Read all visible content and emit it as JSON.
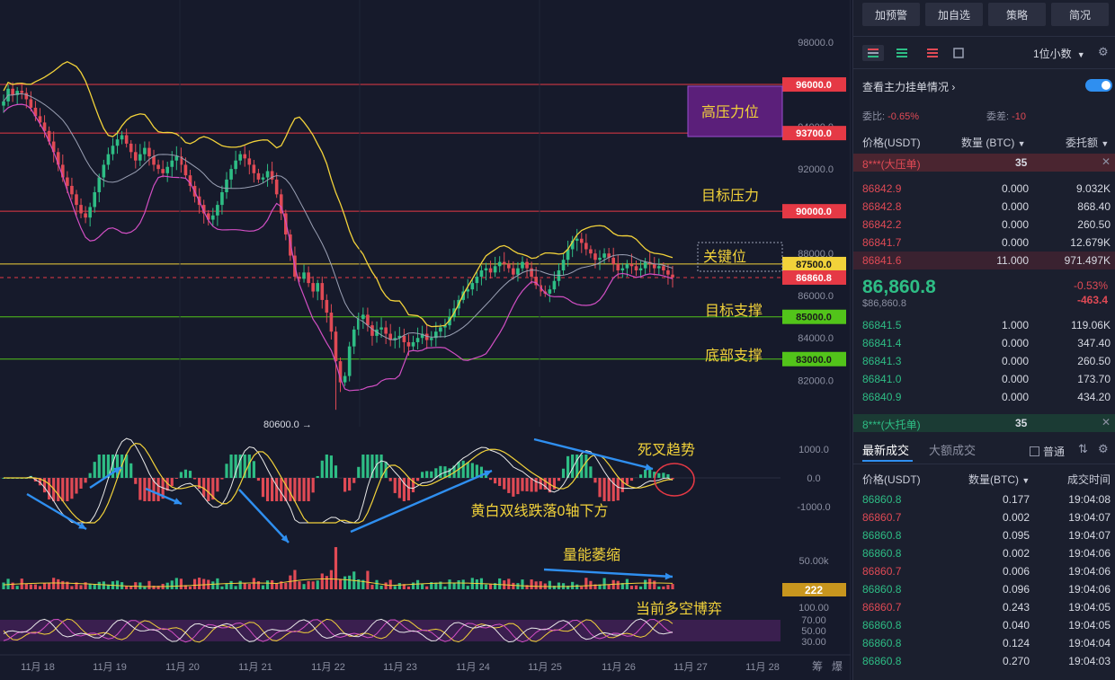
{
  "toolbar": {
    "alert_label": "加预警",
    "watch_label": "加自选",
    "strategy_label": "策略",
    "simple_label": "简况",
    "decimals_label": "1位小数"
  },
  "orderbook": {
    "main_orders_label": "查看主力挂单情况",
    "ratio_label": "委比:",
    "ratio_value": "-0.65%",
    "diff_label": "委差:",
    "diff_value": "-10",
    "col_price": "价格(USDT)",
    "col_qty": "数量 (BTC)",
    "col_total": "委托额",
    "big_sell_label": "8***(大压单)",
    "big_sell_count": "35",
    "big_buy_label": "8***(大托单)",
    "big_buy_count": "35",
    "asks": [
      {
        "price": "86842.9",
        "qty": "0.000",
        "total": "9.032K"
      },
      {
        "price": "86842.8",
        "qty": "0.000",
        "total": "868.40"
      },
      {
        "price": "86842.2",
        "qty": "0.000",
        "total": "260.50"
      },
      {
        "price": "86841.7",
        "qty": "0.000",
        "total": "12.679K"
      },
      {
        "price": "86841.6",
        "qty": "11.000",
        "total": "971.497K"
      }
    ],
    "last_price": "86,860.8",
    "last_price_sub": "$86,860.8",
    "change_pct": "-0.53%",
    "change_abs": "-463.4",
    "bids": [
      {
        "price": "86841.5",
        "qty": "1.000",
        "total": "119.06K"
      },
      {
        "price": "86841.4",
        "qty": "0.000",
        "total": "347.40"
      },
      {
        "price": "86841.3",
        "qty": "0.000",
        "total": "260.50"
      },
      {
        "price": "86841.0",
        "qty": "0.000",
        "total": "173.70"
      },
      {
        "price": "86840.9",
        "qty": "0.000",
        "total": "434.20"
      }
    ]
  },
  "trades": {
    "tab_latest": "最新成交",
    "tab_large": "大额成交",
    "filter_label": "普通",
    "col_price": "价格(USDT)",
    "col_qty": "数量(BTC)",
    "col_time": "成交时间",
    "rows": [
      {
        "price": "86860.8",
        "qty": "0.177",
        "time": "19:04:08",
        "side": "buy"
      },
      {
        "price": "86860.7",
        "qty": "0.002",
        "time": "19:04:07",
        "side": "sell"
      },
      {
        "price": "86860.8",
        "qty": "0.095",
        "time": "19:04:07",
        "side": "buy"
      },
      {
        "price": "86860.8",
        "qty": "0.002",
        "time": "19:04:06",
        "side": "buy"
      },
      {
        "price": "86860.7",
        "qty": "0.006",
        "time": "19:04:06",
        "side": "sell"
      },
      {
        "price": "86860.8",
        "qty": "0.096",
        "time": "19:04:06",
        "side": "buy"
      },
      {
        "price": "86860.7",
        "qty": "0.243",
        "time": "19:04:05",
        "side": "sell"
      },
      {
        "price": "86860.8",
        "qty": "0.040",
        "time": "19:04:05",
        "side": "buy"
      },
      {
        "price": "86860.8",
        "qty": "0.124",
        "time": "19:04:04",
        "side": "buy"
      },
      {
        "price": "86860.8",
        "qty": "0.270",
        "time": "19:04:03",
        "side": "buy"
      }
    ]
  },
  "chart_data": {
    "type": "candlestick",
    "x_labels": [
      "11月 18",
      "11月 19",
      "11月 20",
      "11月 21",
      "11月 22",
      "11月 23",
      "11月 24",
      "11月 25",
      "11月 26",
      "11月 27",
      "11月 28"
    ],
    "y_ticks": [
      "98000.0",
      "94000.0",
      "92000.0",
      "88000.0",
      "86000.0",
      "84000.0",
      "82000.0"
    ],
    "y_ticks_values": [
      98000,
      94000,
      92000,
      88000,
      86000,
      84000,
      82000
    ],
    "y_range": [
      79800,
      100000
    ],
    "levels": [
      {
        "label": "96000.0",
        "value": 96000,
        "color": "#e53945"
      },
      {
        "label": "93700.0",
        "value": 93700,
        "color": "#e53945"
      },
      {
        "label": "90000.0",
        "value": 90000,
        "color": "#e53945"
      },
      {
        "label": "87500.0",
        "value": 87500,
        "color": "#f2d23a"
      },
      {
        "label": "86860.8",
        "value": 86860.8,
        "color": "#e53945"
      },
      {
        "label": "85000.0",
        "value": 85000,
        "color": "#52c41a"
      },
      {
        "label": "83000.0",
        "value": 83000,
        "color": "#52c41a"
      }
    ],
    "annotations": {
      "high_pressure": "高压力位",
      "target_pressure": "目标压力",
      "key_level": "关键位",
      "target_support": "目标支撑",
      "bottom_support": "底部支撑",
      "low_marker": "80600.0 →",
      "death_cross": "死叉趋势",
      "below_zero": "黄白双线跌落0轴下方",
      "volume_shrink": "量能萎缩",
      "bull_bear": "当前多空博弈"
    },
    "series_close": [
      95200,
      95800,
      95500,
      95700,
      95600,
      95300,
      94900,
      94500,
      94200,
      93800,
      93300,
      92800,
      92200,
      91600,
      91200,
      90800,
      90300,
      89900,
      89700,
      90200,
      90900,
      91600,
      92200,
      92700,
      93100,
      93400,
      93600,
      93200,
      92800,
      92400,
      92700,
      93000,
      92600,
      92200,
      92000,
      91800,
      92100,
      92400,
      92600,
      92200,
      91700,
      91200,
      90700,
      90300,
      89900,
      89600,
      89800,
      90300,
      90900,
      91500,
      92000,
      92400,
      92700,
      92500,
      92200,
      91800,
      91500,
      91600,
      91900,
      91500,
      90800,
      89900,
      88900,
      87900,
      86900,
      86800,
      87100,
      86600,
      86200,
      86600,
      85800,
      85200,
      84300,
      82900,
      81900,
      82200,
      83600,
      84400,
      84900,
      85100,
      84600,
      84100,
      84400,
      84500,
      84200,
      83900,
      84000,
      84100,
      83800,
      83600,
      83800,
      84000,
      84200,
      83900,
      84000,
      84300,
      84500,
      84600,
      85000,
      85400,
      85800,
      86200,
      86300,
      86600,
      86900,
      87200,
      87300,
      87100,
      87400,
      87600,
      87500,
      87300,
      87000,
      87300,
      87600,
      87300,
      86900,
      86500,
      86200,
      86100,
      86300,
      86700,
      87200,
      87700,
      88200,
      88600,
      88700,
      88500,
      88200,
      88000,
      87700,
      87800,
      88000,
      87800,
      87500,
      87200,
      87300,
      87500,
      87400,
      87200,
      87300,
      87600,
      87500,
      87300,
      87400,
      87200,
      87000,
      86861
    ],
    "macd": {
      "ticks": [
        "1000.0",
        "0.0",
        "-1000.0"
      ],
      "tick_values": [
        1000,
        0,
        -1000
      ]
    },
    "volume": {
      "ticks": [
        "50.00k"
      ],
      "current": "222"
    },
    "rsi": {
      "ticks": [
        "100.00",
        "70.00",
        "50.00",
        "30.00"
      ],
      "tick_values": [
        100,
        70,
        50,
        30
      ]
    },
    "bottom_right_labels": [
      "筹",
      "爆"
    ]
  },
  "colors": {
    "up": "#2ebd85",
    "down": "#e04a55",
    "boll_upper": "#f2d23a",
    "boll_mid": "#9aa0b4",
    "boll_lower": "#d24fc4",
    "annotation_arrow": "#2f8ff0"
  }
}
